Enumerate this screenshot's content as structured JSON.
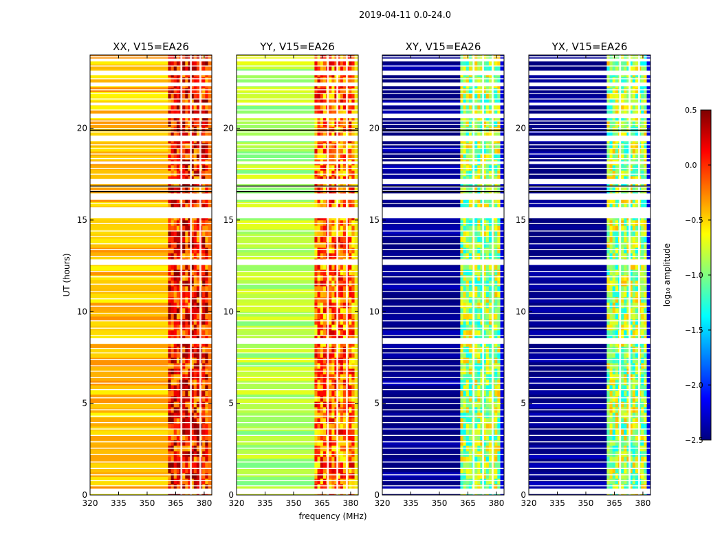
{
  "figure_title": "2019-04-11 0.0-24.0",
  "xlabel": "frequency (MHz)",
  "ylabel": "UT (hours)",
  "colorbar": {
    "label": "log₁₀ amplitude",
    "range": [
      -2.5,
      0.5
    ],
    "ticks": [
      0.5,
      0.0,
      -0.5,
      -1.0,
      -1.5,
      -2.0,
      -2.5
    ],
    "tick_labels": [
      "0.5",
      "0.0",
      "−0.5",
      "−1.0",
      "−1.5",
      "−2.0",
      "−2.5"
    ],
    "colormap": "jet",
    "stops": [
      "#00007f",
      "#0000ff",
      "#0080ff",
      "#00ffff",
      "#80ff80",
      "#ffff00",
      "#ff8000",
      "#ff0000",
      "#7f0000"
    ]
  },
  "chart_data": {
    "type": "heatmap",
    "x_range": [
      320,
      384
    ],
    "y_range": [
      0,
      24
    ],
    "x_ticks": [
      320,
      335,
      350,
      365,
      380
    ],
    "x_tick_labels": [
      "320",
      "335",
      "350",
      "365",
      "380"
    ],
    "y_ticks": [
      0,
      5,
      10,
      15,
      20
    ],
    "y_tick_labels": [
      "0",
      "5",
      "10",
      "15",
      "20"
    ],
    "active_band_mhz": [
      361,
      382
    ],
    "band_gaps_mhz": [
      [
        367.5,
        368.5
      ],
      [
        372.5,
        373.5
      ],
      [
        377.5,
        378.5
      ]
    ],
    "panels": [
      {
        "name": "xx",
        "title": "XX, V15=EA26",
        "low_band_level": -0.45,
        "high_band_level": 0.05
      },
      {
        "name": "yy",
        "title": "YY, V15=EA26",
        "low_band_level": -0.85,
        "high_band_level": -0.2
      },
      {
        "name": "xy",
        "title": "XY, V15=EA26",
        "low_band_level": -2.45,
        "high_band_level": -0.9
      },
      {
        "name": "yx",
        "title": "YX, V15=EA26",
        "low_band_level": -2.45,
        "high_band_level": -0.9
      }
    ],
    "blank_ut_intervals": [
      [
        0.05,
        0.35
      ],
      [
        8.25,
        8.55
      ],
      [
        12.55,
        12.85
      ],
      [
        15.1,
        15.7
      ],
      [
        16.1,
        16.45
      ],
      [
        16.95,
        17.25
      ],
      [
        18.05,
        18.2
      ],
      [
        19.3,
        19.6
      ],
      [
        20.55,
        20.8
      ],
      [
        21.25,
        21.4
      ],
      [
        22.3,
        22.5
      ],
      [
        22.9,
        23.15
      ],
      [
        23.65,
        23.8
      ]
    ],
    "line_ut": [
      0.5,
      0.8,
      1.1,
      1.45,
      1.8,
      2.2,
      2.55,
      2.9,
      3.25,
      3.6,
      3.95,
      4.3,
      4.65,
      5.0,
      5.3,
      5.75,
      6.1,
      6.4,
      6.75,
      7.05,
      7.4,
      7.75,
      8.0,
      8.7,
      9.1,
      9.5,
      9.9,
      10.3,
      10.7,
      11.1,
      11.5,
      11.9,
      12.2,
      13.0,
      13.4,
      13.7,
      14.1,
      14.4,
      14.8,
      15.9,
      16.6,
      16.8,
      17.5,
      17.8,
      18.35,
      18.6,
      18.9,
      19.1,
      19.8,
      20.0,
      20.2,
      20.4,
      21.0,
      21.6,
      21.9,
      22.1,
      22.7,
      23.4,
      23.9
    ]
  }
}
